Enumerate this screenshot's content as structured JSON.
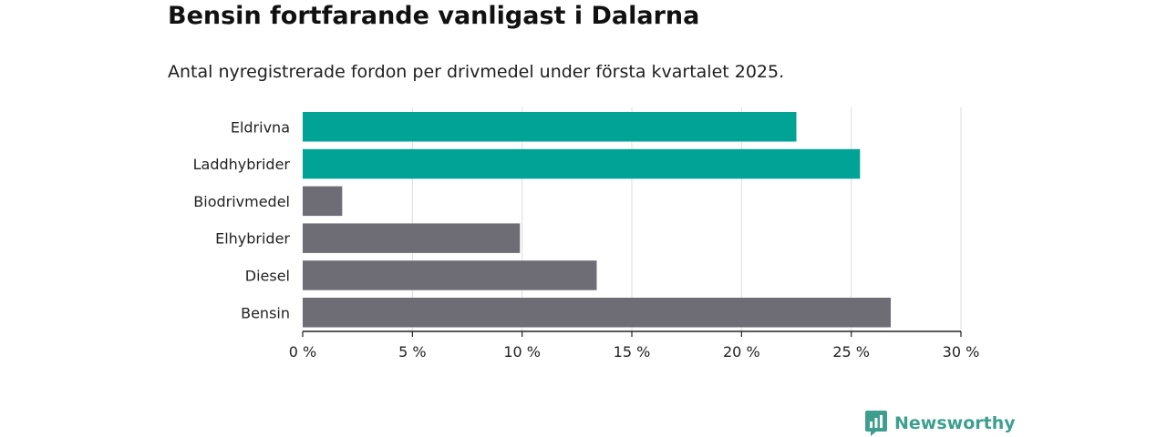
{
  "title": "Bensin fortfarande vanligast i Dalarna",
  "subtitle": "Antal nyregistrerade fordon per drivmedel under första kvartalet 2025.",
  "brand": {
    "name": "Newsworthy",
    "icon": "bar-chart-bubble-icon",
    "color": "#3f9f8f"
  },
  "colors": {
    "highlight": "#00a396",
    "default": "#6e6d75",
    "grid": "#dddddd",
    "axis": "#222222"
  },
  "chart_data": {
    "type": "bar",
    "orientation": "horizontal",
    "categories": [
      "Eldrivna",
      "Laddhybrider",
      "Biodrivmedel",
      "Elhybrider",
      "Diesel",
      "Bensin"
    ],
    "values": [
      22.5,
      25.4,
      1.8,
      9.9,
      13.4,
      26.8
    ],
    "highlighted": [
      true,
      true,
      false,
      false,
      false,
      false
    ],
    "xlim": [
      0,
      30
    ],
    "xticks": [
      0,
      5,
      10,
      15,
      20,
      25,
      30
    ],
    "xtick_labels": [
      "0 %",
      "5 %",
      "10 %",
      "15 %",
      "20 %",
      "25 %",
      "30 %"
    ],
    "unit": "%",
    "grid": true,
    "legend": "none"
  }
}
